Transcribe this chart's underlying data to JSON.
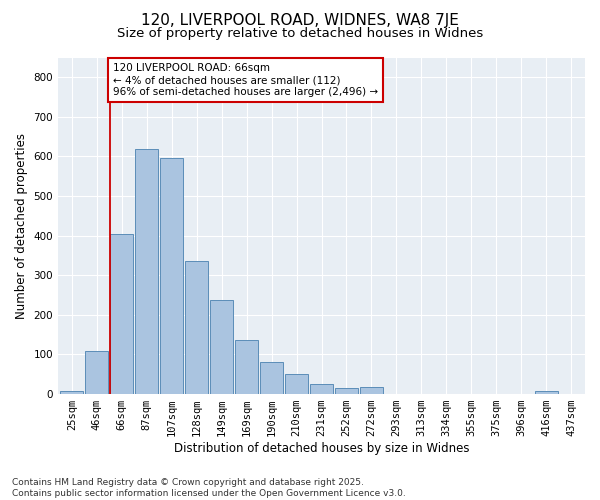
{
  "title": "120, LIVERPOOL ROAD, WIDNES, WA8 7JE",
  "subtitle": "Size of property relative to detached houses in Widnes",
  "xlabel": "Distribution of detached houses by size in Widnes",
  "ylabel": "Number of detached properties",
  "categories": [
    "25sqm",
    "46sqm",
    "66sqm",
    "87sqm",
    "107sqm",
    "128sqm",
    "149sqm",
    "169sqm",
    "190sqm",
    "210sqm",
    "231sqm",
    "252sqm",
    "272sqm",
    "293sqm",
    "313sqm",
    "334sqm",
    "355sqm",
    "375sqm",
    "396sqm",
    "416sqm",
    "437sqm"
  ],
  "values": [
    7,
    110,
    405,
    620,
    597,
    335,
    237,
    137,
    80,
    50,
    25,
    15,
    18,
    0,
    0,
    0,
    0,
    0,
    0,
    8,
    0
  ],
  "bar_color": "#aac4e0",
  "bar_edge_color": "#5b8db8",
  "highlight_bar_index": 2,
  "highlight_line_color": "#cc0000",
  "annotation_text": "120 LIVERPOOL ROAD: 66sqm\n← 4% of detached houses are smaller (112)\n96% of semi-detached houses are larger (2,496) →",
  "annotation_box_color": "#ffffff",
  "annotation_box_edge_color": "#cc0000",
  "ylim": [
    0,
    850
  ],
  "yticks": [
    0,
    100,
    200,
    300,
    400,
    500,
    600,
    700,
    800
  ],
  "figure_bg": "#ffffff",
  "plot_bg": "#e8eef4",
  "grid_color": "#ffffff",
  "footer_text": "Contains HM Land Registry data © Crown copyright and database right 2025.\nContains public sector information licensed under the Open Government Licence v3.0.",
  "title_fontsize": 11,
  "subtitle_fontsize": 9.5,
  "axis_label_fontsize": 8.5,
  "tick_fontsize": 7.5,
  "annotation_fontsize": 7.5,
  "footer_fontsize": 6.5
}
